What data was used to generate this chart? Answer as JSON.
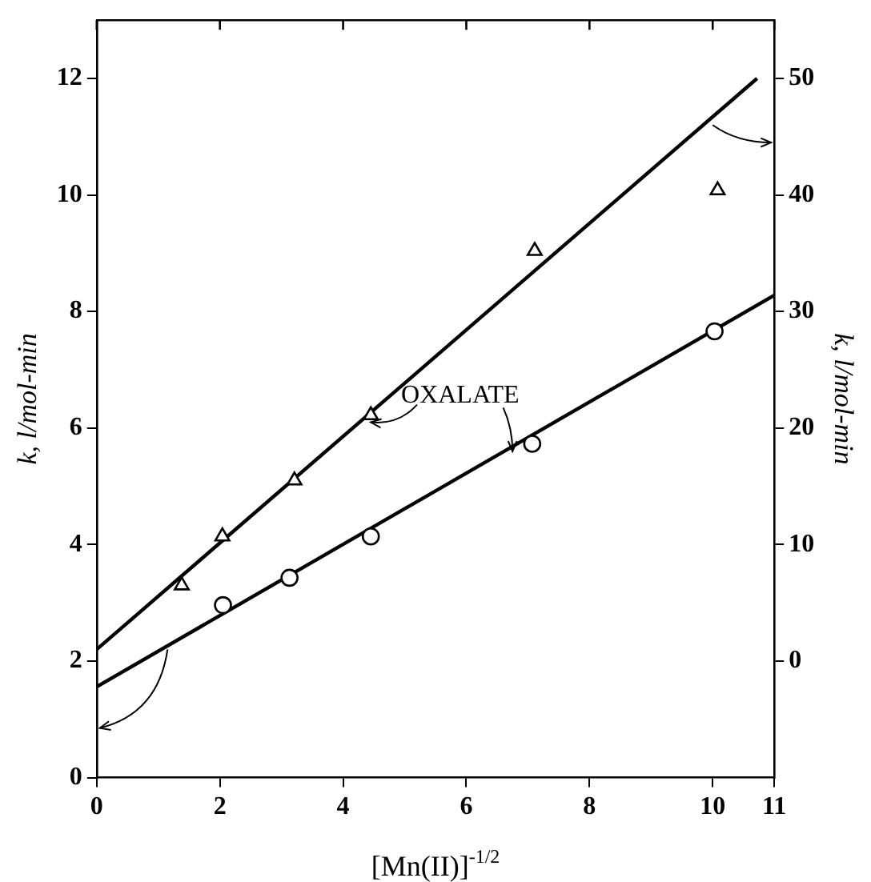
{
  "chart_data": {
    "type": "scatter",
    "xlabel": "[Mn(II)]$^{-1/2}$",
    "ylabel": "k, l/mol-min",
    "y2label": "k, l/mol-min",
    "xlim": [
      0,
      11
    ],
    "xticks": [
      0,
      2,
      4,
      6,
      8,
      10,
      11
    ],
    "ylim": [
      0,
      13
    ],
    "yticks": [
      0,
      2,
      4,
      6,
      8,
      10,
      12
    ],
    "y2lim": [
      -10,
      55
    ],
    "y2ticks": [
      0,
      10,
      20,
      30,
      40,
      50
    ],
    "grid": false,
    "legend": false,
    "annotations": [
      "OXALATE"
    ],
    "series": [
      {
        "marker": "triangle",
        "axis": "y2",
        "color": "#000000",
        "x": [
          1.38,
          2.04,
          3.21,
          4.45,
          7.11,
          10.08
        ],
        "values": [
          6.5,
          10.7,
          15.5,
          21.1,
          35.2,
          40.4
        ]
      },
      {
        "marker": "circle",
        "color": "#000000",
        "x": [
          2.05,
          3.13,
          4.45,
          7.07,
          10.03
        ],
        "values": [
          2.96,
          3.43,
          4.14,
          5.73,
          7.66
        ]
      },
      {
        "type": "line",
        "axis": "y2",
        "line_style": "solid",
        "color": "#000000",
        "x": [
          0,
          10.72
        ],
        "values": [
          1,
          50
        ]
      },
      {
        "type": "line",
        "line_style": "solid",
        "color": "#000000",
        "x": [
          0,
          11
        ],
        "values": [
          1.56,
          8.28
        ]
      }
    ]
  }
}
